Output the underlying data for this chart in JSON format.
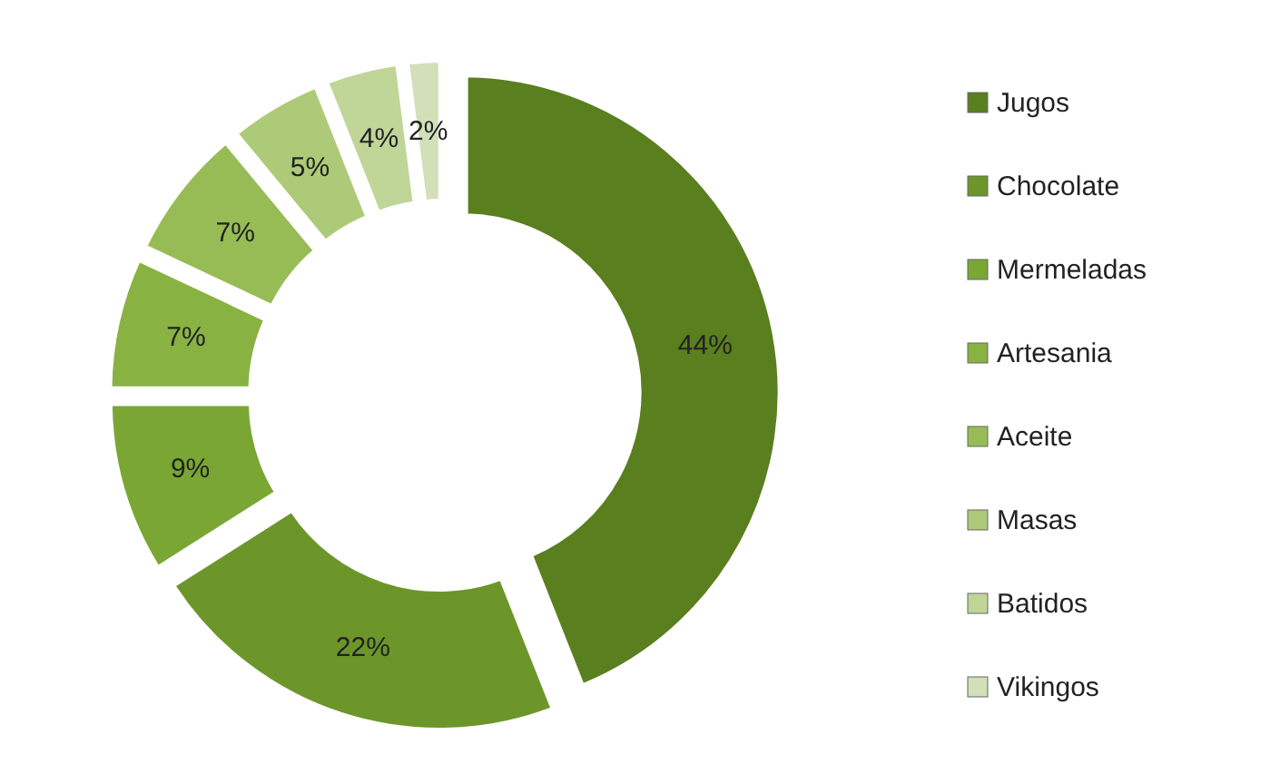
{
  "chart_data": {
    "type": "donut",
    "categories": [
      "Jugos",
      "Chocolate",
      "Mermeladas",
      "Artesania",
      "Aceite",
      "Masas",
      "Batidos",
      "Vikingos"
    ],
    "values": [
      44,
      22,
      9,
      7,
      7,
      5,
      4,
      2
    ],
    "value_labels": [
      "44%",
      "22%",
      "9%",
      "7%",
      "7%",
      "5%",
      "4%",
      "2%"
    ],
    "colors": [
      "#5a7f1e",
      "#6c962a",
      "#7aa634",
      "#88b242",
      "#97bc55",
      "#adca78",
      "#c0d598",
      "#d2dfb8"
    ],
    "legend": "right"
  }
}
